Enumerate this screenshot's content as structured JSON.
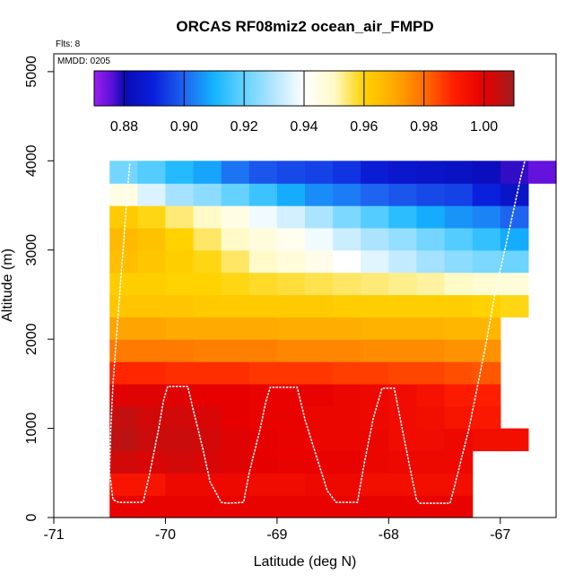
{
  "chart_data": {
    "type": "heatmap",
    "title": "ORCAS RF08miz2 ocean_air_FMPD",
    "flights_note": "Flts: 8",
    "date_note": "MMDD: 0205",
    "xlabel": "Latitude (deg N)",
    "ylabel": "Altitude (m)",
    "xlim": [
      -71,
      -66.5
    ],
    "ylim": [
      0,
      5200
    ],
    "x_ticks": [
      -71,
      -70,
      -69,
      -68,
      -67
    ],
    "y_ticks": [
      0,
      1000,
      2000,
      3000,
      4000,
      5000
    ],
    "colorbar": {
      "range": [
        0.87,
        1.01
      ],
      "ticks": [
        0.88,
        0.9,
        0.92,
        0.94,
        0.96,
        0.98,
        1.0
      ],
      "tick_labels": [
        "0.88",
        "0.90",
        "0.92",
        "0.94",
        "0.96",
        "0.98",
        "1.00"
      ],
      "stops": [
        [
          0.87,
          "#9a1ef0"
        ],
        [
          0.876,
          "#5a10d8"
        ],
        [
          0.88,
          "#0a0ab4"
        ],
        [
          0.89,
          "#0a20dc"
        ],
        [
          0.9,
          "#1e64f0"
        ],
        [
          0.91,
          "#14b4ff"
        ],
        [
          0.92,
          "#64d2ff"
        ],
        [
          0.93,
          "#b4e6ff"
        ],
        [
          0.94,
          "#ffffff"
        ],
        [
          0.95,
          "#fffac8"
        ],
        [
          0.96,
          "#ffd200"
        ],
        [
          0.97,
          "#ffaa00"
        ],
        [
          0.98,
          "#ff6e00"
        ],
        [
          0.99,
          "#ff1e00"
        ],
        [
          1.0,
          "#e60000"
        ],
        [
          1.01,
          "#a01e1e"
        ]
      ]
    },
    "lat_edges": [
      -70.5,
      -70.25,
      -70.0,
      -69.75,
      -69.5,
      -69.25,
      -69.0,
      -68.75,
      -68.5,
      -68.25,
      -68.0,
      -67.75,
      -67.5,
      -67.25,
      -67.0,
      -66.75,
      -66.5
    ],
    "alt_edges": [
      0,
      250,
      500,
      750,
      1000,
      1250,
      1500,
      1750,
      2000,
      2250,
      2500,
      2750,
      3000,
      3250,
      3500,
      3750,
      4000
    ],
    "grid_values": [
      [
        0.999,
        0.999,
        0.999,
        0.999,
        0.999,
        0.999,
        0.999,
        0.999,
        0.999,
        0.999,
        0.999,
        0.999,
        0.999,
        null,
        null,
        null
      ],
      [
        0.993,
        0.993,
        0.997,
        0.997,
        0.997,
        0.996,
        0.996,
        0.997,
        0.997,
        0.995,
        0.995,
        0.995,
        0.995,
        null,
        null,
        null
      ],
      [
        1.003,
        1.002,
        1.003,
        1.002,
        1.001,
        1.0,
        0.999,
        0.999,
        0.999,
        0.998,
        0.997,
        0.997,
        0.997,
        null,
        null,
        null
      ],
      [
        1.006,
        1.004,
        1.004,
        1.003,
        1.001,
        1.0,
        0.999,
        0.998,
        0.998,
        0.998,
        0.996,
        0.996,
        0.997,
        0.995,
        0.995,
        null
      ],
      [
        1.005,
        1.003,
        1.003,
        1.002,
        1.0,
        0.999,
        0.999,
        0.998,
        0.998,
        0.997,
        0.996,
        0.995,
        0.993,
        0.992,
        null,
        null
      ],
      [
        1.001,
        1.001,
        1.001,
        1.0,
        1.0,
        0.999,
        0.999,
        0.999,
        0.998,
        0.997,
        0.996,
        0.994,
        0.991,
        0.99,
        null,
        null
      ],
      [
        0.989,
        0.989,
        0.988,
        0.988,
        0.988,
        0.987,
        0.987,
        0.987,
        0.986,
        0.986,
        0.985,
        0.985,
        0.984,
        0.983,
        null,
        null
      ],
      [
        0.978,
        0.978,
        0.978,
        0.977,
        0.977,
        0.977,
        0.976,
        0.976,
        0.976,
        0.975,
        0.975,
        0.975,
        0.974,
        0.974,
        null,
        null
      ],
      [
        0.971,
        0.971,
        0.97,
        0.97,
        0.97,
        0.97,
        0.969,
        0.969,
        0.969,
        0.968,
        0.968,
        0.968,
        0.967,
        0.967,
        null,
        null
      ],
      [
        0.963,
        0.963,
        0.963,
        0.962,
        0.962,
        0.962,
        0.962,
        0.962,
        0.961,
        0.961,
        0.961,
        0.961,
        0.961,
        0.96,
        0.959,
        null
      ],
      [
        0.961,
        0.961,
        0.96,
        0.96,
        0.959,
        0.958,
        0.957,
        0.956,
        0.955,
        0.954,
        0.953,
        0.952,
        0.95,
        0.948,
        0.947,
        null
      ],
      [
        0.965,
        0.963,
        0.961,
        0.959,
        0.955,
        0.95,
        0.947,
        0.944,
        0.94,
        0.936,
        0.932,
        0.928,
        0.925,
        0.923,
        0.921,
        null
      ],
      [
        0.966,
        0.964,
        0.96,
        0.955,
        0.95,
        0.946,
        0.943,
        0.938,
        0.933,
        0.929,
        0.926,
        0.922,
        0.918,
        0.914,
        0.909,
        null
      ],
      [
        0.962,
        0.959,
        0.954,
        0.95,
        0.945,
        0.938,
        0.934,
        0.929,
        0.923,
        0.918,
        0.913,
        0.909,
        0.906,
        0.904,
        0.9,
        null
      ],
      [
        0.945,
        0.935,
        0.928,
        0.925,
        0.92,
        0.915,
        0.909,
        0.905,
        0.903,
        0.9,
        0.898,
        0.896,
        0.895,
        0.89,
        0.885,
        null
      ],
      [
        0.922,
        0.918,
        0.912,
        0.908,
        0.902,
        0.898,
        0.896,
        0.895,
        0.893,
        0.888,
        0.886,
        0.885,
        0.884,
        0.882,
        0.878,
        0.875
      ]
    ],
    "flight_track": [
      [
        -70.32,
        3960
      ],
      [
        -70.35,
        3500
      ],
      [
        -70.38,
        3000
      ],
      [
        -70.41,
        2500
      ],
      [
        -70.44,
        2000
      ],
      [
        -70.47,
        1500
      ],
      [
        -70.49,
        1000
      ],
      [
        -70.5,
        500
      ],
      [
        -70.47,
        200
      ],
      [
        -70.42,
        170
      ],
      [
        -70.2,
        170
      ],
      [
        -70.14,
        500
      ],
      [
        -70.06,
        1000
      ],
      [
        -70.02,
        1300
      ],
      [
        -69.98,
        1470
      ],
      [
        -69.8,
        1470
      ],
      [
        -69.75,
        1200
      ],
      [
        -69.67,
        800
      ],
      [
        -69.6,
        400
      ],
      [
        -69.5,
        170
      ],
      [
        -69.45,
        160
      ],
      [
        -69.3,
        170
      ],
      [
        -69.25,
        500
      ],
      [
        -69.15,
        1000
      ],
      [
        -69.1,
        1300
      ],
      [
        -69.06,
        1460
      ],
      [
        -68.82,
        1460
      ],
      [
        -68.75,
        1100
      ],
      [
        -68.65,
        700
      ],
      [
        -68.55,
        300
      ],
      [
        -68.47,
        170
      ],
      [
        -68.28,
        170
      ],
      [
        -68.22,
        600
      ],
      [
        -68.14,
        1100
      ],
      [
        -68.06,
        1450
      ],
      [
        -67.95,
        1450
      ],
      [
        -67.88,
        1000
      ],
      [
        -67.8,
        500
      ],
      [
        -67.75,
        200
      ],
      [
        -67.72,
        160
      ],
      [
        -67.45,
        160
      ],
      [
        -67.38,
        500
      ],
      [
        -67.28,
        1000
      ],
      [
        -67.2,
        1500
      ],
      [
        -67.12,
        2000
      ],
      [
        -67.05,
        2500
      ],
      [
        -66.96,
        3000
      ],
      [
        -66.88,
        3450
      ],
      [
        -66.82,
        3800
      ],
      [
        -66.78,
        4000
      ]
    ]
  }
}
